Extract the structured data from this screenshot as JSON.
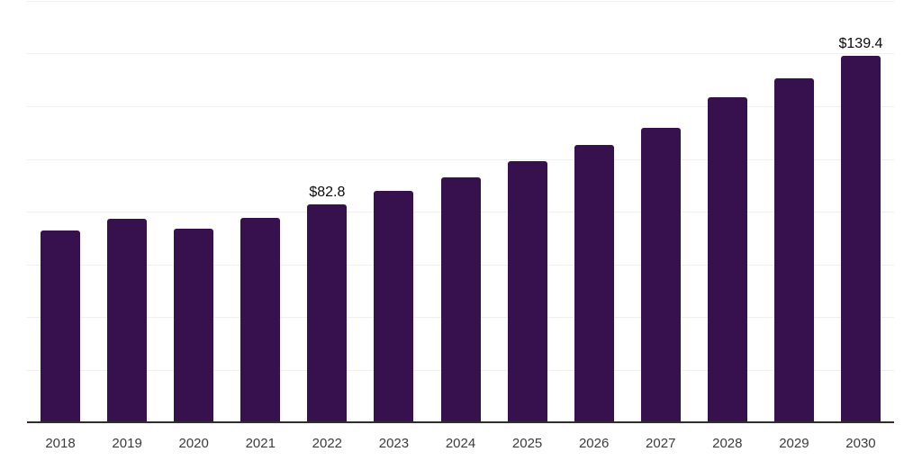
{
  "chart_data": {
    "type": "bar",
    "title": "",
    "xlabel": "",
    "ylabel": "",
    "categories": [
      "2018",
      "2019",
      "2020",
      "2021",
      "2022",
      "2023",
      "2024",
      "2025",
      "2026",
      "2027",
      "2028",
      "2029",
      "2030"
    ],
    "values": [
      73.2,
      77.5,
      73.8,
      78.0,
      82.8,
      88.2,
      93.3,
      99.4,
      105.5,
      112.1,
      123.6,
      130.8,
      139.4
    ],
    "value_labels": [
      "",
      "",
      "",
      "",
      "$82.8",
      "",
      "",
      "",
      "",
      "",
      "",
      "",
      "$139.4"
    ],
    "ylim": [
      0,
      160
    ],
    "gridline_step": 20,
    "grid": "horizontal-only",
    "legend": "none",
    "y_axis_tick_labels_visible": false,
    "colors": {
      "bar": "#37114E",
      "axis_line": "#2E2E2E",
      "gridline": "#F0F0F1",
      "x_tick_label": "#3C3C3C",
      "value_label": "#0B0B0B",
      "background": "#FFFFFF"
    }
  }
}
